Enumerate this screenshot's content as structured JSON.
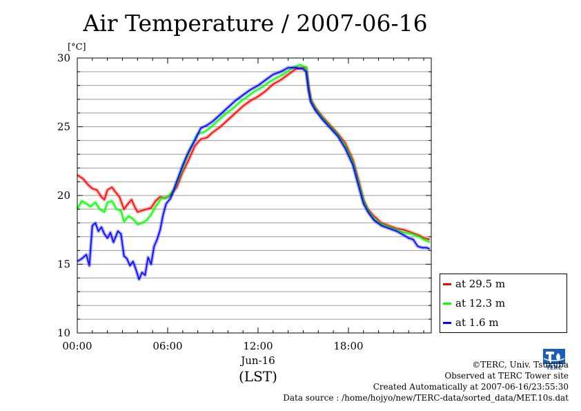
{
  "chart_data": {
    "type": "line",
    "title": "Air Temperature / 2007-06-16",
    "ylabel": "[°C]",
    "xlabel": "(LST)",
    "xsublabel": "Jun-16",
    "xlim": [
      0,
      23.5
    ],
    "ylim": [
      10,
      30
    ],
    "xticks": [
      {
        "value": 0,
        "label": "00:00"
      },
      {
        "value": 6,
        "label": "06:00"
      },
      {
        "value": 12,
        "label": "12:00"
      },
      {
        "value": 18,
        "label": "18:00"
      }
    ],
    "yticks": [
      10,
      15,
      20,
      25,
      30
    ],
    "grid": true,
    "legend_position": "right",
    "series": [
      {
        "name": "at 29.5 m",
        "color": "#ff0000",
        "points": [
          [
            0,
            21.5
          ],
          [
            0.4,
            21.2
          ],
          [
            0.7,
            20.8
          ],
          [
            1.0,
            20.5
          ],
          [
            1.3,
            20.4
          ],
          [
            1.6,
            19.9
          ],
          [
            1.8,
            19.7
          ],
          [
            2.0,
            20.4
          ],
          [
            2.3,
            20.6
          ],
          [
            2.5,
            20.3
          ],
          [
            2.8,
            19.9
          ],
          [
            3.1,
            19.0
          ],
          [
            3.3,
            19.3
          ],
          [
            3.6,
            19.7
          ],
          [
            3.8,
            19.2
          ],
          [
            4.0,
            18.8
          ],
          [
            4.3,
            18.9
          ],
          [
            4.6,
            19.0
          ],
          [
            4.9,
            19.1
          ],
          [
            5.2,
            19.6
          ],
          [
            5.5,
            19.9
          ],
          [
            5.8,
            19.8
          ],
          [
            6.2,
            20.0
          ],
          [
            6.6,
            20.6
          ],
          [
            7.0,
            21.7
          ],
          [
            7.4,
            22.6
          ],
          [
            7.8,
            23.6
          ],
          [
            8.2,
            24.1
          ],
          [
            8.6,
            24.2
          ],
          [
            9.0,
            24.6
          ],
          [
            9.5,
            25.0
          ],
          [
            10.0,
            25.5
          ],
          [
            10.5,
            26.0
          ],
          [
            11.0,
            26.5
          ],
          [
            11.5,
            26.9
          ],
          [
            12.0,
            27.2
          ],
          [
            12.5,
            27.6
          ],
          [
            13.0,
            28.1
          ],
          [
            13.5,
            28.4
          ],
          [
            14.0,
            28.8
          ],
          [
            14.5,
            29.2
          ],
          [
            15.0,
            29.3
          ],
          [
            15.2,
            29.3
          ],
          [
            15.35,
            28.0
          ],
          [
            15.5,
            27.0
          ],
          [
            15.8,
            26.4
          ],
          [
            16.3,
            25.7
          ],
          [
            16.8,
            25.1
          ],
          [
            17.3,
            24.5
          ],
          [
            17.8,
            23.8
          ],
          [
            18.3,
            22.6
          ],
          [
            18.7,
            21.0
          ],
          [
            19.0,
            19.7
          ],
          [
            19.3,
            19.0
          ],
          [
            19.7,
            18.5
          ],
          [
            20.2,
            18.0
          ],
          [
            20.7,
            17.8
          ],
          [
            21.2,
            17.6
          ],
          [
            21.7,
            17.5
          ],
          [
            22.2,
            17.3
          ],
          [
            22.7,
            17.1
          ],
          [
            23.0,
            16.9
          ],
          [
            23.4,
            16.8
          ]
        ]
      },
      {
        "name": "at 12.3 m",
        "color": "#00ff00",
        "points": [
          [
            0,
            19.0
          ],
          [
            0.3,
            19.6
          ],
          [
            0.6,
            19.4
          ],
          [
            0.9,
            19.2
          ],
          [
            1.2,
            19.5
          ],
          [
            1.5,
            19.0
          ],
          [
            1.8,
            18.8
          ],
          [
            2.0,
            19.5
          ],
          [
            2.3,
            19.6
          ],
          [
            2.6,
            19.0
          ],
          [
            2.9,
            18.9
          ],
          [
            3.1,
            18.1
          ],
          [
            3.4,
            18.5
          ],
          [
            3.7,
            18.3
          ],
          [
            4.0,
            17.9
          ],
          [
            4.3,
            18.0
          ],
          [
            4.6,
            18.2
          ],
          [
            4.9,
            18.6
          ],
          [
            5.2,
            19.2
          ],
          [
            5.6,
            19.8
          ],
          [
            6.0,
            19.9
          ],
          [
            6.4,
            20.4
          ],
          [
            6.8,
            21.4
          ],
          [
            7.2,
            22.6
          ],
          [
            7.6,
            23.6
          ],
          [
            8.0,
            24.5
          ],
          [
            8.4,
            24.6
          ],
          [
            8.8,
            24.9
          ],
          [
            9.3,
            25.4
          ],
          [
            9.8,
            25.9
          ],
          [
            10.3,
            26.3
          ],
          [
            10.8,
            26.8
          ],
          [
            11.3,
            27.2
          ],
          [
            11.8,
            27.6
          ],
          [
            12.3,
            27.9
          ],
          [
            12.8,
            28.3
          ],
          [
            13.3,
            28.6
          ],
          [
            13.8,
            28.9
          ],
          [
            14.3,
            29.3
          ],
          [
            14.8,
            29.5
          ],
          [
            15.2,
            29.3
          ],
          [
            15.35,
            27.8
          ],
          [
            15.5,
            26.9
          ],
          [
            15.8,
            26.3
          ],
          [
            16.3,
            25.6
          ],
          [
            16.8,
            25.0
          ],
          [
            17.3,
            24.4
          ],
          [
            17.8,
            23.6
          ],
          [
            18.3,
            22.4
          ],
          [
            18.7,
            20.8
          ],
          [
            19.0,
            19.6
          ],
          [
            19.3,
            18.9
          ],
          [
            19.7,
            18.3
          ],
          [
            20.2,
            17.9
          ],
          [
            20.7,
            17.7
          ],
          [
            21.2,
            17.5
          ],
          [
            21.7,
            17.3
          ],
          [
            22.2,
            17.2
          ],
          [
            22.7,
            17.0
          ],
          [
            23.0,
            16.8
          ],
          [
            23.4,
            16.6
          ]
        ]
      },
      {
        "name": "at 1.6 m",
        "color": "#0000ff",
        "points": [
          [
            0,
            15.2
          ],
          [
            0.3,
            15.4
          ],
          [
            0.6,
            15.7
          ],
          [
            0.8,
            14.9
          ],
          [
            1.0,
            17.8
          ],
          [
            1.2,
            18.0
          ],
          [
            1.4,
            17.4
          ],
          [
            1.6,
            17.7
          ],
          [
            1.8,
            17.2
          ],
          [
            2.0,
            16.9
          ],
          [
            2.2,
            17.3
          ],
          [
            2.4,
            16.6
          ],
          [
            2.7,
            17.4
          ],
          [
            2.9,
            17.2
          ],
          [
            3.1,
            15.6
          ],
          [
            3.3,
            15.4
          ],
          [
            3.5,
            14.9
          ],
          [
            3.7,
            15.2
          ],
          [
            3.9,
            14.6
          ],
          [
            4.1,
            13.9
          ],
          [
            4.3,
            14.4
          ],
          [
            4.5,
            14.2
          ],
          [
            4.7,
            15.5
          ],
          [
            4.9,
            15.0
          ],
          [
            5.1,
            16.3
          ],
          [
            5.3,
            16.8
          ],
          [
            5.5,
            17.5
          ],
          [
            5.7,
            18.6
          ],
          [
            5.9,
            19.4
          ],
          [
            6.2,
            19.8
          ],
          [
            6.6,
            21.0
          ],
          [
            7.0,
            22.2
          ],
          [
            7.4,
            23.2
          ],
          [
            7.8,
            24.0
          ],
          [
            8.2,
            24.9
          ],
          [
            8.6,
            25.1
          ],
          [
            9.0,
            25.4
          ],
          [
            9.5,
            25.9
          ],
          [
            10.0,
            26.4
          ],
          [
            10.5,
            26.9
          ],
          [
            11.0,
            27.3
          ],
          [
            11.5,
            27.7
          ],
          [
            12.0,
            28.0
          ],
          [
            12.5,
            28.4
          ],
          [
            13.0,
            28.8
          ],
          [
            13.5,
            29.0
          ],
          [
            14.0,
            29.3
          ],
          [
            14.5,
            29.3
          ],
          [
            15.0,
            29.2
          ],
          [
            15.2,
            29.0
          ],
          [
            15.35,
            27.7
          ],
          [
            15.5,
            26.8
          ],
          [
            15.8,
            26.2
          ],
          [
            16.3,
            25.5
          ],
          [
            16.8,
            24.9
          ],
          [
            17.3,
            24.3
          ],
          [
            17.8,
            23.4
          ],
          [
            18.3,
            22.2
          ],
          [
            18.7,
            20.6
          ],
          [
            19.0,
            19.4
          ],
          [
            19.3,
            18.8
          ],
          [
            19.7,
            18.2
          ],
          [
            20.2,
            17.8
          ],
          [
            20.7,
            17.6
          ],
          [
            21.2,
            17.4
          ],
          [
            21.7,
            17.1
          ],
          [
            22.0,
            16.9
          ],
          [
            22.3,
            16.8
          ],
          [
            22.6,
            16.3
          ],
          [
            22.9,
            16.2
          ],
          [
            23.2,
            16.2
          ],
          [
            23.4,
            16.1
          ]
        ]
      }
    ]
  },
  "credits": {
    "copyright": "©TERC, Univ. Tsukuba",
    "observed": "Observed at TERC Tower site",
    "created": "Created Automatically at 2007-06-16/23:55:30",
    "source": "Data source : /home/hojyo/new/TERC-data/sorted_data/MET.10s.dat"
  },
  "logo": {
    "text": "TERC",
    "color": "#1a5fc0",
    "icon": "terc-logo-icon"
  }
}
